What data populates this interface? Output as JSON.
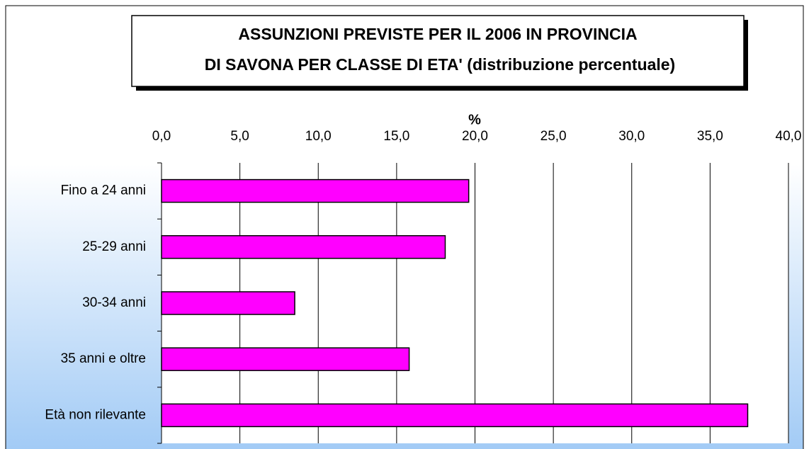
{
  "chart_data": {
    "type": "barh",
    "title": [
      "ASSUNZIONI PREVISTE PER IL 2006 IN PROVINCIA",
      "DI SAVONA PER CLASSE DI ETA' (distribuzione percentuale)"
    ],
    "xlabel": "%",
    "categories": [
      "Fino a 24 anni",
      "25-29 anni",
      "30-34 anni",
      "35 anni e oltre",
      "Età non rilevante"
    ],
    "values": [
      19.6,
      18.1,
      8.5,
      15.8,
      37.4
    ],
    "color": "#ff00ff",
    "xlim": [
      0,
      40
    ],
    "xticks": [
      {
        "value": 0,
        "label": "0,0"
      },
      {
        "value": 5,
        "label": "5,0"
      },
      {
        "value": 10,
        "label": "10,0"
      },
      {
        "value": 15,
        "label": "15,0"
      },
      {
        "value": 20,
        "label": "20,0"
      },
      {
        "value": 25,
        "label": "25,0"
      },
      {
        "value": 30,
        "label": "30,0"
      },
      {
        "value": 35,
        "label": "35,0"
      },
      {
        "value": 40,
        "label": "40,0"
      }
    ],
    "grid": true
  }
}
